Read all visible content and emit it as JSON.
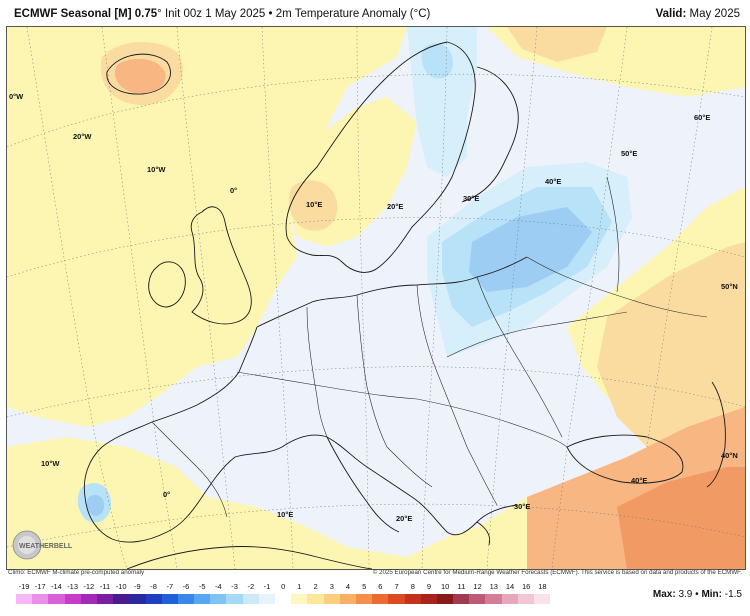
{
  "header": {
    "model": "ECMWF Seasonal [M] 0.75",
    "degree_mark": "°",
    "init": "Init 00z 1 May 2025",
    "sep": "•",
    "variable": "2m Temperature Anomaly (°C)",
    "valid_label": "Valid:",
    "valid_value": "May 2025"
  },
  "map": {
    "grid_labels": [
      "0°W",
      "20°W",
      "10°W",
      "0°",
      "10°E",
      "20°E",
      "30°E",
      "40°E",
      "50°E",
      "60°E",
      "50°N",
      "40°N",
      "10°W",
      "0°",
      "10°E",
      "20°E",
      "30°E",
      "40°E"
    ],
    "logo_text": "WEATHERBELL",
    "colors": {
      "neutral": "#eef2fb",
      "warm_light": "#fdf6b2",
      "warm": "#fbdca0",
      "warm_strong": "#f8b683",
      "hot": "#f19a64",
      "cool_light": "#d7eefb",
      "cool": "#b8e2f7",
      "cool_strong": "#9dcdf2",
      "cold": "#7fb5ec"
    }
  },
  "footer": {
    "climo": "Climo: ECMWF M-climate pre-computed anomaly",
    "copyright": "© 2025 European Centre for Medium-Range Weather Forecasts (ECMWF). This service is based on data and products of the ECMWF."
  },
  "legend": {
    "labels": [
      "-19",
      "-17",
      "-14",
      "-13",
      "-12",
      "-11",
      "-10",
      "-9",
      "-8",
      "-7",
      "-6",
      "-5",
      "-4",
      "-3",
      "-2",
      "-1",
      "0",
      "1",
      "2",
      "3",
      "4",
      "5",
      "6",
      "7",
      "8",
      "9",
      "10",
      "11",
      "12",
      "13",
      "14",
      "16",
      "18"
    ],
    "colors": [
      "#f7b6f7",
      "#e98ee9",
      "#d860d8",
      "#c83ac8",
      "#a22ab4",
      "#7a1fa0",
      "#4a1a90",
      "#2a2aa0",
      "#1f3fc0",
      "#2060d8",
      "#3a88e6",
      "#55a8f0",
      "#7fc2f4",
      "#a6d8f7",
      "#cce9fa",
      "#e6f3fc",
      "#ffffff",
      "#fdf7c0",
      "#fde79a",
      "#fccf7e",
      "#f9b066",
      "#f48f4d",
      "#ec6b34",
      "#dd4a22",
      "#c5321b",
      "#a8241a",
      "#8a1a1a",
      "#a03a52",
      "#bc5a78",
      "#d27f98",
      "#e6a7bc",
      "#f2c7d4",
      "#fae1ea"
    ],
    "max_label": "Max:",
    "max_value": "3.9",
    "min_label": "Min:",
    "min_value": "-1.5"
  }
}
